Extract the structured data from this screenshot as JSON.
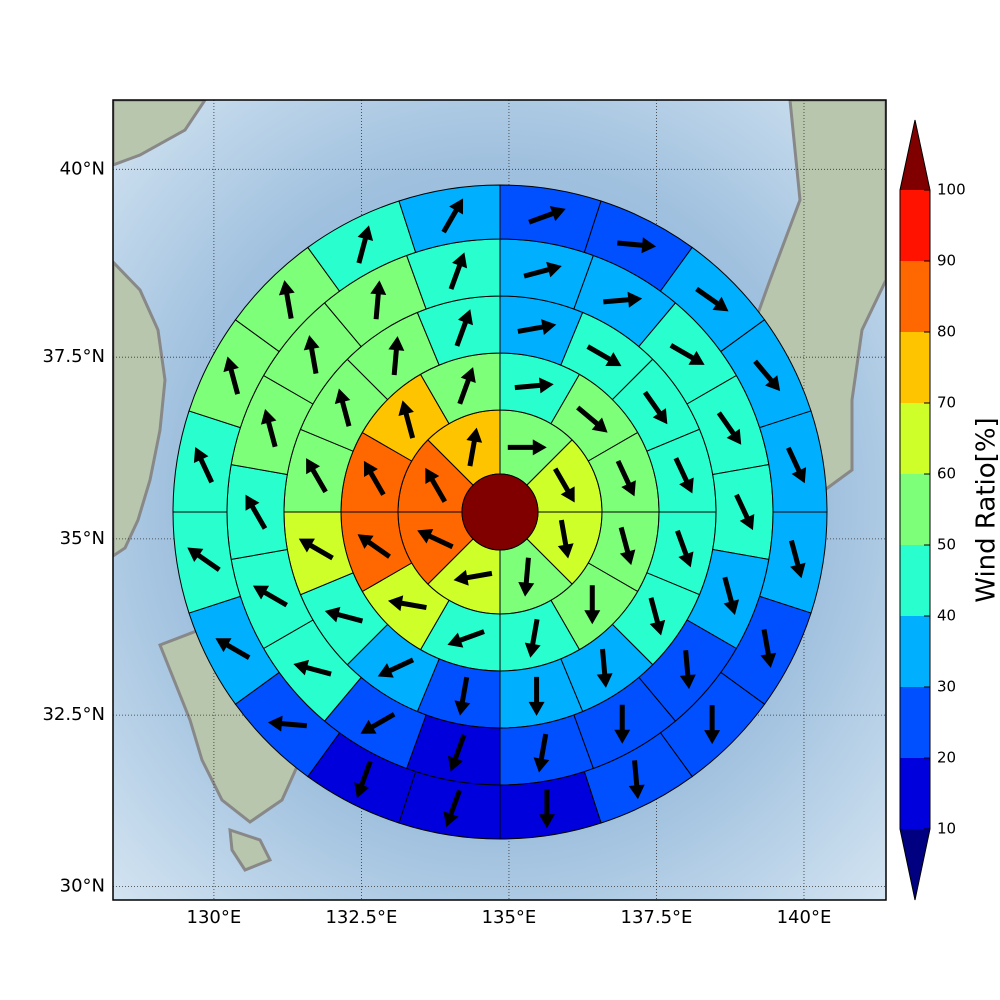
{
  "chart_data": {
    "type": "polar_grid",
    "xlim": [
      128.29,
      141.39
    ],
    "ylim": [
      29.8,
      40.9
    ],
    "xticks": [
      {
        "value": 130,
        "label": "130°E"
      },
      {
        "value": 132.5,
        "label": "132.5°E"
      },
      {
        "value": 135,
        "label": "135°E"
      },
      {
        "value": 137.5,
        "label": "137.5°E"
      },
      {
        "value": 140,
        "label": "140°E"
      }
    ],
    "yticks": [
      {
        "value": 30,
        "label": "30°N"
      },
      {
        "value": 32.5,
        "label": "32.5°N"
      },
      {
        "value": 35,
        "label": "35°N"
      },
      {
        "value": 37.5,
        "label": "37.5°N"
      },
      {
        "value": 40,
        "label": "40°N"
      }
    ],
    "grid": true,
    "center_value": 105,
    "rings": [
      {
        "values": [
          55,
          65,
          65,
          55,
          65,
          85,
          85,
          75
        ],
        "directions": [
          90,
          150,
          170,
          185,
          260,
          295,
          330,
          10
        ]
      },
      {
        "values": [
          45,
          55,
          55,
          55,
          55,
          45,
          45,
          65,
          85,
          85,
          75,
          55
        ],
        "directions": [
          85,
          130,
          155,
          165,
          180,
          190,
          250,
          280,
          305,
          330,
          345,
          20
        ]
      },
      {
        "values": [
          35,
          45,
          45,
          45,
          45,
          45,
          35,
          35,
          25,
          35,
          45,
          65,
          55,
          55,
          55,
          45
        ],
        "directions": [
          80,
          120,
          145,
          155,
          160,
          165,
          175,
          180,
          190,
          245,
          285,
          300,
          330,
          345,
          5,
          20
        ]
      },
      {
        "values": [
          35,
          35,
          45,
          45,
          45,
          35,
          25,
          25,
          25,
          15,
          25,
          45,
          45,
          45,
          55,
          55,
          55,
          45
        ],
        "directions": [
          75,
          85,
          120,
          145,
          155,
          165,
          175,
          180,
          190,
          200,
          240,
          285,
          300,
          330,
          345,
          350,
          5,
          20
        ]
      },
      {
        "values": [
          25,
          25,
          35,
          35,
          35,
          35,
          25,
          25,
          25,
          15,
          15,
          15,
          25,
          35,
          45,
          45,
          55,
          55,
          45,
          35
        ],
        "directions": [
          70,
          95,
          125,
          140,
          155,
          165,
          170,
          180,
          175,
          180,
          200,
          200,
          275,
          300,
          305,
          335,
          345,
          350,
          15,
          30
        ]
      }
    ],
    "colorbar": {
      "label": "Wind Ratio[%]",
      "levels": [
        10,
        20,
        30,
        40,
        50,
        60,
        70,
        80,
        90,
        100
      ],
      "colors": [
        "#0000dd",
        "#0050ff",
        "#00b0ff",
        "#29ffce",
        "#7dff7a",
        "#ceff29",
        "#ffc400",
        "#ff6800",
        "#ff1300"
      ],
      "under": "#000080",
      "over": "#800000"
    }
  }
}
